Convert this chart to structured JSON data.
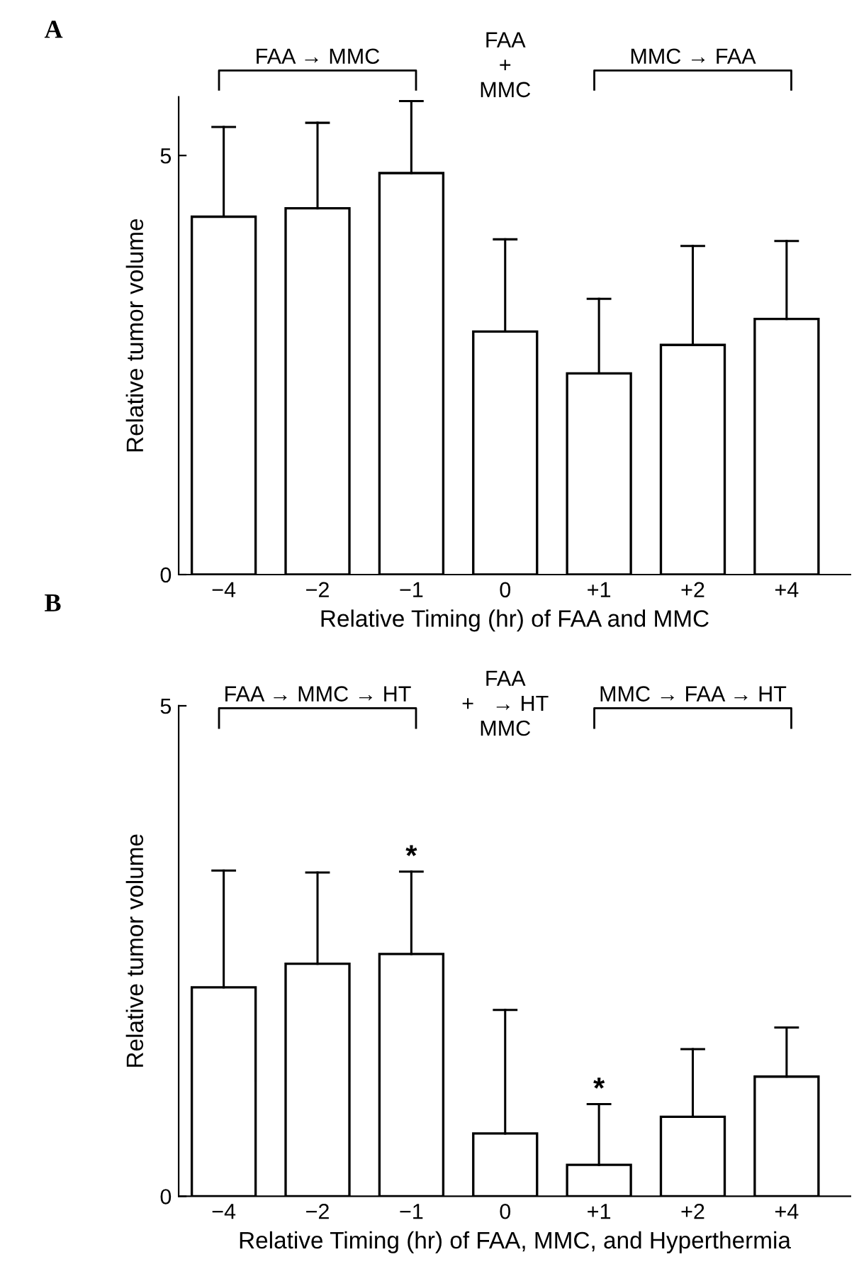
{
  "chart_data": [
    {
      "type": "bar",
      "title": "A",
      "xlabel": "Relative Timing (hr) of FAA and MMC",
      "ylabel": "Relative tumor volume",
      "categories": [
        "−4",
        "−2",
        "−1",
        "0",
        "+1",
        "+2",
        "+4"
      ],
      "values": [
        4.27,
        4.37,
        4.79,
        2.9,
        2.4,
        2.74,
        3.05
      ],
      "errors": [
        [
          4.27,
          5.34
        ],
        [
          4.37,
          5.39
        ],
        [
          4.79,
          5.65
        ],
        [
          2.9,
          4.0
        ],
        [
          2.4,
          3.29
        ],
        [
          2.74,
          3.92
        ],
        [
          3.05,
          3.98
        ]
      ],
      "color": "#ffffff",
      "ylim": [
        0,
        5.7
      ],
      "yticks": [
        0,
        5
      ],
      "grid": false,
      "legend": false,
      "annotations": [
        "FAA → MMC",
        "FAA\n+\nMMC",
        "MMC → FAA"
      ]
    },
    {
      "type": "bar",
      "title": "B",
      "xlabel": "Relative Timing (hr) of FAA, MMC, and Hyperthermia",
      "ylabel": "Relative tumor volume",
      "categories": [
        "−4",
        "−2",
        "−1",
        "0",
        "+1",
        "+2",
        "+4"
      ],
      "values": [
        2.13,
        2.37,
        2.47,
        0.64,
        0.32,
        0.81,
        1.22
      ],
      "errors": [
        [
          2.13,
          3.32
        ],
        [
          2.37,
          3.3
        ],
        [
          2.47,
          3.31
        ],
        [
          0.64,
          1.9
        ],
        [
          0.32,
          0.94
        ],
        [
          0.81,
          1.5
        ],
        [
          1.22,
          1.72
        ]
      ],
      "color": "#ffffff",
      "ylim": [
        0,
        5
      ],
      "yticks": [
        0,
        5
      ],
      "grid": false,
      "legend": false,
      "annotations": [
        "FAA → MMC → HT",
        "FAA\n+   → HT\nMMC",
        "MMC → FAA → HT",
        {
          "text": "*",
          "x": "−1",
          "y": 3.31
        },
        {
          "text": "*",
          "x": "+1",
          "y": 0.94
        }
      ]
    }
  ]
}
